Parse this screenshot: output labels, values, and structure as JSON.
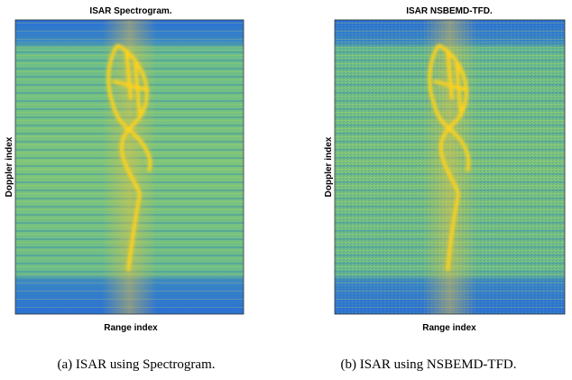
{
  "panels": [
    {
      "title": "ISAR Spectrogram.",
      "ylabel": "Doppler index",
      "xlabel": "Range index",
      "caption": "(a) ISAR using Spectrogram."
    },
    {
      "title": "ISAR NSBEMD-TFD.",
      "ylabel": "Doppler index",
      "xlabel": "Range index",
      "caption": "(b) ISAR using NSBEMD-TFD."
    }
  ]
}
